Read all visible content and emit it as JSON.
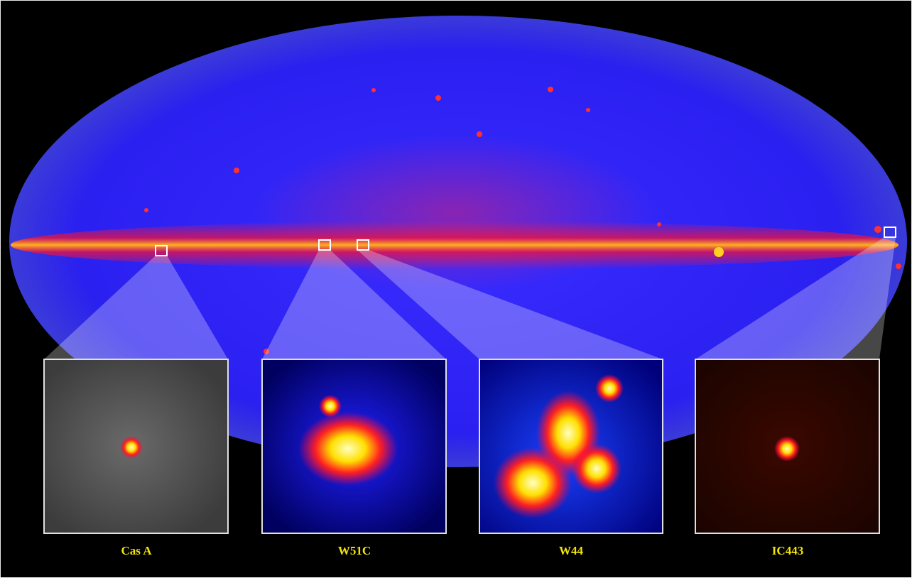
{
  "insets": [
    {
      "label": "Cas A"
    },
    {
      "label": "W51C"
    },
    {
      "label": "W44"
    },
    {
      "label": "IC443"
    }
  ]
}
